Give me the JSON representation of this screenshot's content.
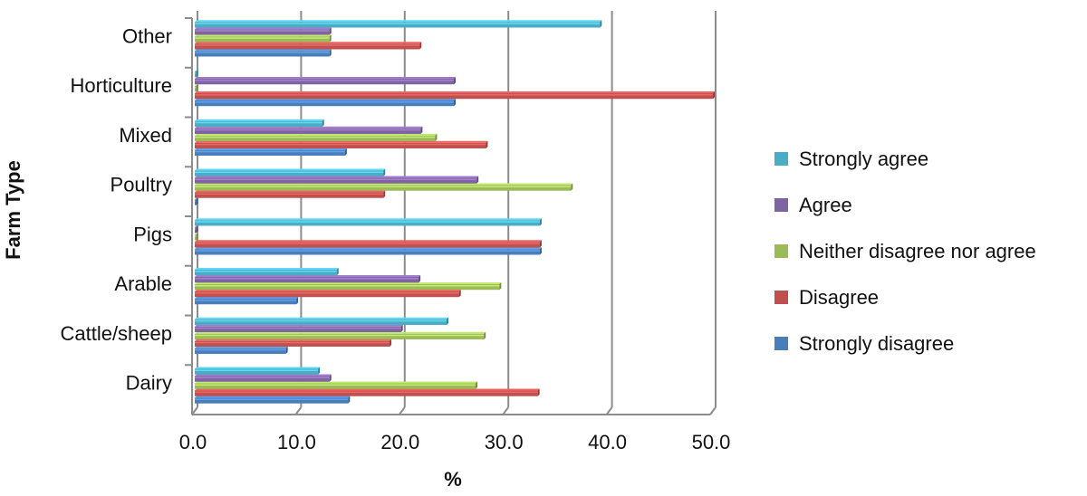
{
  "chart_data": {
    "type": "bar",
    "orientation": "horizontal",
    "ylabel": "Farm Type",
    "xlabel": "%",
    "xlim": [
      0,
      50
    ],
    "xticks": [
      "0.0",
      "10.0",
      "20.0",
      "30.0",
      "40.0",
      "50.0"
    ],
    "grid": true,
    "legend_position": "right",
    "categories": [
      "Dairy",
      "Cattle/sheep",
      "Arable",
      "Pigs",
      "Poultry",
      "Mixed",
      "Horticulture",
      "Other"
    ],
    "series": [
      {
        "name": "Strongly disagree",
        "color": "#4a7ebb",
        "values": [
          14.8,
          8.8,
          9.8,
          33.3,
          0.0,
          14.5,
          25.0,
          13.0
        ]
      },
      {
        "name": "Disagree",
        "color": "#c0504d",
        "values": [
          33.1,
          18.8,
          25.5,
          33.3,
          18.2,
          28.1,
          50.0,
          21.7
        ]
      },
      {
        "name": "Neither disagree nor agree",
        "color": "#9bbb59",
        "values": [
          27.1,
          27.9,
          29.4,
          0.0,
          36.3,
          23.2,
          0.0,
          13.0
        ]
      },
      {
        "name": "Agree",
        "color": "#8064a2",
        "values": [
          13.0,
          19.9,
          21.6,
          0.0,
          27.2,
          21.8,
          25.0,
          13.0
        ]
      },
      {
        "name": "Strongly agree",
        "color": "#4bacc6",
        "values": [
          11.9,
          24.3,
          13.7,
          33.3,
          18.2,
          12.3,
          0.0,
          39.1
        ]
      }
    ]
  }
}
